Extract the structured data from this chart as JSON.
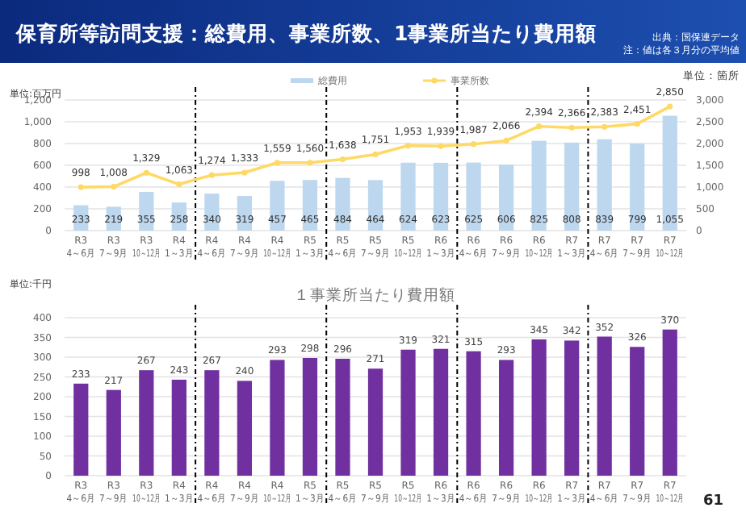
{
  "chart_data": [
    {
      "type": "bar",
      "title": "保育所等訪問支援：総費用、事業所数、1事業所当たり費用額",
      "annotations": [
        "出典：国保連データ",
        "注：値は各３月分の平均値"
      ],
      "ylabel": "単位:百万円",
      "y2label": "単位：箇所",
      "categories": [
        "R3\n4～6月",
        "R3\n7～9月",
        "R3\n10～12月",
        "R4\n1～3月",
        "R4\n4～6月",
        "R4\n7～9月",
        "R4\n10～12月",
        "R5\n1～3月",
        "R5\n4～6月",
        "R5\n7～9月",
        "R5\n10～12月",
        "R6\n1～3月",
        "R6\n4～6月",
        "R6\n7～9月",
        "R6\n10～12月",
        "R7\n1～3月",
        "R7\n4～6月",
        "R7\n7～9月",
        "R7\n10～12月"
      ],
      "series": [
        {
          "name": "総費用",
          "color": "#bdd7ee",
          "values": [
            233,
            219,
            355,
            258,
            340,
            319,
            457,
            465,
            484,
            464,
            624,
            623,
            625,
            606,
            825,
            808,
            839,
            799,
            1055
          ],
          "value_labels": [
            "233",
            "219",
            "355",
            "258",
            "340",
            "319",
            "457",
            "465",
            "484",
            "464",
            "624",
            "623",
            "625",
            "606",
            "825",
            "808",
            "839",
            "799",
            "1,055"
          ]
        },
        {
          "name": "事業所数",
          "type": "line",
          "axis": "y2",
          "color": "#ffd966",
          "values": [
            998,
            1008,
            1329,
            1063,
            1274,
            1333,
            1559,
            1560,
            1638,
            1751,
            1953,
            1939,
            1987,
            2066,
            2394,
            2366,
            2383,
            2451,
            2850
          ],
          "value_labels": [
            "998",
            "1,008",
            "1,329",
            "1,063",
            "1,274",
            "1,333",
            "1,559",
            "1,560",
            "1,638",
            "1,751",
            "1,953",
            "1,939",
            "1,987",
            "2,066",
            "2,394",
            "2,366",
            "2,383",
            "2,451",
            "2,850"
          ]
        }
      ],
      "ylim": [
        0,
        1200
      ],
      "yticks": [
        {
          "value": 0,
          "label": "0"
        },
        {
          "value": 200,
          "label": "200"
        },
        {
          "value": 400,
          "label": "400"
        },
        {
          "value": 600,
          "label": "600"
        },
        {
          "value": 800,
          "label": "800"
        },
        {
          "value": 1000,
          "label": "1,000"
        },
        {
          "value": 1200,
          "label": "1,200"
        }
      ],
      "y2lim": [
        0,
        3000
      ],
      "y2ticks": [
        {
          "value": 0,
          "label": "0"
        },
        {
          "value": 500,
          "label": "500"
        },
        {
          "value": 1000,
          "label": "1,000"
        },
        {
          "value": 1500,
          "label": "1,500"
        },
        {
          "value": 2000,
          "label": "2,000"
        },
        {
          "value": 2500,
          "label": "2,500"
        },
        {
          "value": 3000,
          "label": "3,000"
        }
      ],
      "grid": "y",
      "legend": "top",
      "marker": "circle"
    },
    {
      "type": "bar",
      "title": "１事業所当たり費用額",
      "ylabel": "単位:千円",
      "annotations": [
        "61"
      ],
      "categories": [
        "R3\n4～6月",
        "R3\n7～9月",
        "R3\n10～12月",
        "R4\n1～3月",
        "R4\n4～6月",
        "R4\n7～9月",
        "R4\n10～12月",
        "R5\n1～3月",
        "R5\n4～6月",
        "R5\n7～9月",
        "R5\n10～12月",
        "R6\n1～3月",
        "R6\n4～6月",
        "R6\n7～9月",
        "R6\n10～12月",
        "R7\n1～3月",
        "R7\n4～6月",
        "R7\n7～9月",
        "R7\n10～12月"
      ],
      "values": [
        233,
        217,
        267,
        243,
        267,
        240,
        293,
        298,
        296,
        271,
        319,
        321,
        315,
        293,
        345,
        342,
        352,
        326,
        370
      ],
      "color": "#7030a0",
      "ylim": [
        0,
        400
      ],
      "yticks": [
        0,
        50,
        100,
        150,
        200,
        250,
        300,
        350,
        400
      ],
      "data_labels": true,
      "grid": "y"
    }
  ]
}
